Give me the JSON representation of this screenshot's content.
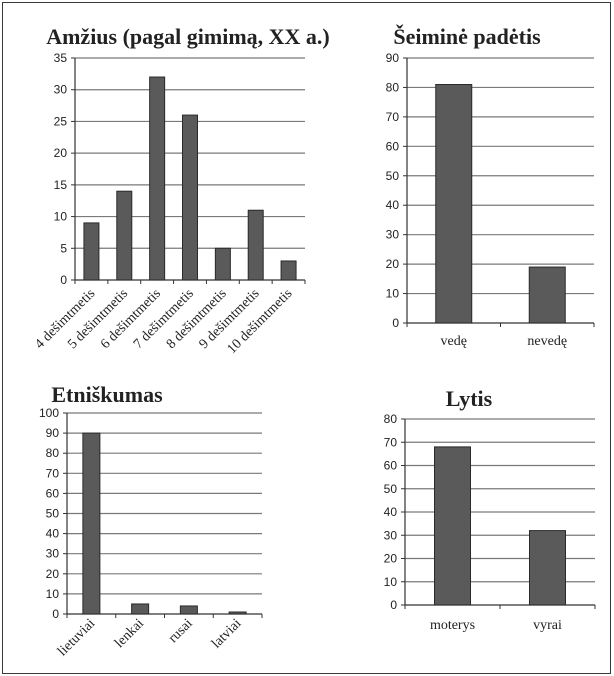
{
  "chart_data": [
    {
      "type": "bar",
      "title": "Amžius (pagal gimimą, XX a.)",
      "categories": [
        "4 dešimtmetis",
        "5 dešimtmetis",
        "6 dešimtmetis",
        "7 dešimtmetis",
        "8 dešimtmetis",
        "9 dešimtmetis",
        "10 dešimtmetis"
      ],
      "values": [
        9,
        14,
        32,
        26,
        5,
        11,
        3
      ],
      "ylim": [
        0,
        35
      ],
      "yticks": [
        0,
        5,
        10,
        15,
        20,
        25,
        30,
        35
      ],
      "grid": true,
      "bar_color": "#5a5a5a"
    },
    {
      "type": "bar",
      "title": "Šeiminė padėtis",
      "categories": [
        "vedę",
        "nevedę"
      ],
      "values": [
        81,
        19
      ],
      "ylim": [
        0,
        90
      ],
      "yticks": [
        0,
        10,
        20,
        30,
        40,
        50,
        60,
        70,
        80,
        90
      ],
      "grid": true,
      "bar_color": "#5a5a5a"
    },
    {
      "type": "bar",
      "title": "Etniškumas",
      "categories": [
        "lietuviai",
        "lenkai",
        "rusai",
        "latviai"
      ],
      "values": [
        90,
        5,
        4,
        1
      ],
      "ylim": [
        0,
        100
      ],
      "yticks": [
        0,
        10,
        20,
        30,
        40,
        50,
        60,
        70,
        80,
        90,
        100
      ],
      "grid": true,
      "bar_color": "#5a5a5a"
    },
    {
      "type": "bar",
      "title": "Lytis",
      "categories": [
        "moterys",
        "vyrai"
      ],
      "values": [
        68,
        32
      ],
      "ylim": [
        0,
        80
      ],
      "yticks": [
        0,
        10,
        20,
        30,
        40,
        50,
        60,
        70,
        80
      ],
      "grid": true,
      "bar_color": "#5a5a5a"
    }
  ]
}
